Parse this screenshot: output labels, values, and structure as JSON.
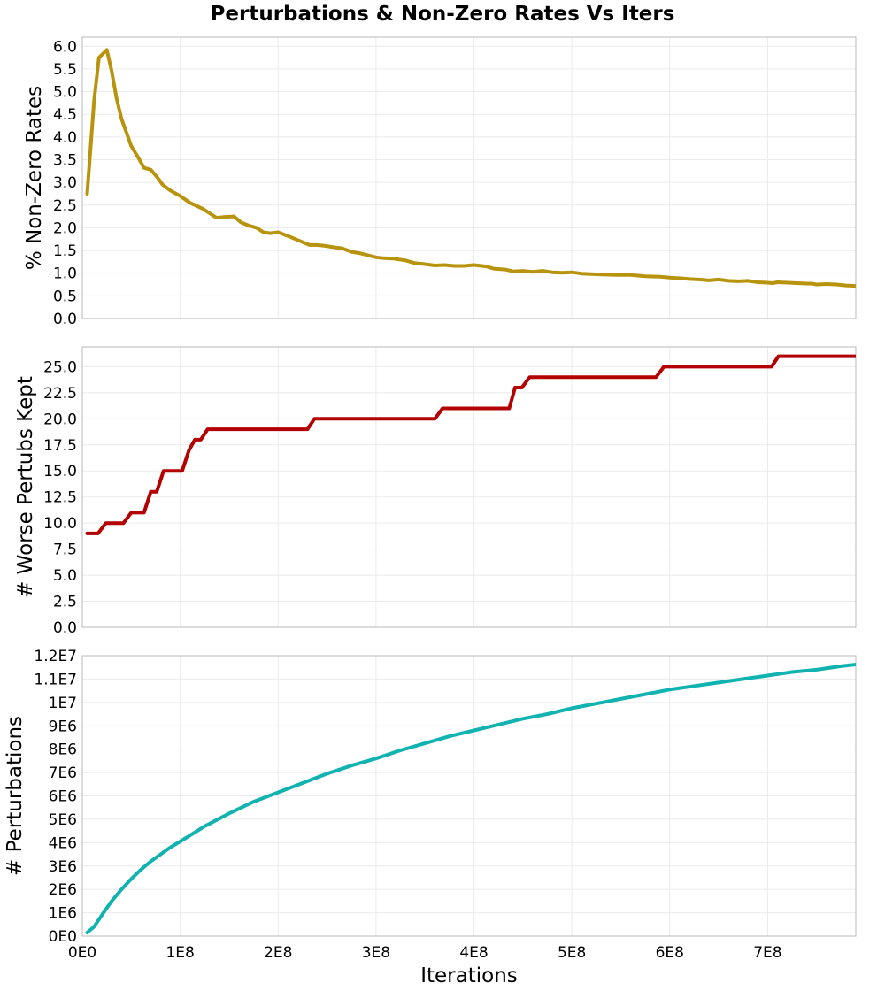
{
  "figure": {
    "title": "Perturbations & Non-Zero Rates Vs Iters",
    "xlabel": "Iterations"
  },
  "chart_data": [
    {
      "type": "line",
      "ylabel": "% Non-Zero Rates",
      "xlim": [
        0,
        790000000
      ],
      "ylim": [
        0,
        6.2
      ],
      "yticks": [
        0,
        0.5,
        1,
        1.5,
        2,
        2.5,
        3,
        3.5,
        4,
        4.5,
        5,
        5.5,
        6
      ],
      "ytick_labels": [
        "0.0",
        "0.5",
        "1.0",
        "1.5",
        "2.0",
        "2.5",
        "3.0",
        "3.5",
        "4.0",
        "4.5",
        "5.0",
        "5.5",
        "6.0"
      ],
      "xticks": [
        0,
        100000000,
        200000000,
        300000000,
        400000000,
        500000000,
        600000000,
        700000000
      ],
      "xtick_labels": [],
      "grid": true,
      "color": "#b8930d",
      "series": [
        {
          "x": [
            5000000,
            12000000,
            17000000,
            25000000,
            30000000,
            35000000,
            40000000,
            50000000,
            57000000,
            63000000,
            70000000,
            77000000,
            82000000,
            90000000,
            100000000,
            110000000,
            123000000,
            130000000,
            137000000,
            146000000,
            155000000,
            162000000,
            170000000,
            178000000,
            185000000,
            192000000,
            200000000,
            210000000,
            220000000,
            232000000,
            240000000,
            248000000,
            257000000,
            265000000,
            275000000,
            283000000,
            300000000,
            308000000,
            318000000,
            330000000,
            340000000,
            350000000,
            360000000,
            370000000,
            380000000,
            390000000,
            400000000,
            412000000,
            420000000,
            432000000,
            440000000,
            450000000,
            460000000,
            470000000,
            480000000,
            490000000,
            500000000,
            510000000,
            520000000,
            530000000,
            545000000,
            560000000,
            575000000,
            590000000,
            600000000,
            610000000,
            620000000,
            630000000,
            640000000,
            650000000,
            660000000,
            670000000,
            680000000,
            690000000,
            700000000,
            705000000,
            710000000,
            720000000,
            730000000,
            740000000,
            745000000,
            750000000,
            760000000,
            770000000,
            780000000,
            790000000
          ],
          "values": [
            2.75,
            4.8,
            5.75,
            5.92,
            5.45,
            4.85,
            4.4,
            3.8,
            3.55,
            3.32,
            3.28,
            3.1,
            2.95,
            2.82,
            2.7,
            2.55,
            2.42,
            2.32,
            2.22,
            2.24,
            2.25,
            2.12,
            2.05,
            2.0,
            1.9,
            1.88,
            1.9,
            1.82,
            1.73,
            1.62,
            1.62,
            1.6,
            1.57,
            1.55,
            1.47,
            1.44,
            1.35,
            1.33,
            1.32,
            1.28,
            1.22,
            1.2,
            1.17,
            1.18,
            1.16,
            1.16,
            1.18,
            1.15,
            1.1,
            1.08,
            1.04,
            1.05,
            1.03,
            1.05,
            1.02,
            1.01,
            1.02,
            0.99,
            0.98,
            0.97,
            0.96,
            0.96,
            0.93,
            0.92,
            0.9,
            0.89,
            0.87,
            0.86,
            0.84,
            0.86,
            0.83,
            0.82,
            0.83,
            0.8,
            0.79,
            0.78,
            0.8,
            0.79,
            0.78,
            0.77,
            0.77,
            0.75,
            0.76,
            0.75,
            0.73,
            0.72
          ]
        }
      ]
    },
    {
      "type": "line",
      "ylabel": "# Worse Pertubs Kept",
      "xlim": [
        0,
        790000000
      ],
      "ylim": [
        0,
        26.9
      ],
      "yticks": [
        0,
        2.5,
        5,
        7.5,
        10,
        12.5,
        15,
        17.5,
        20,
        22.5,
        25
      ],
      "ytick_labels": [
        "0.0",
        "2.5",
        "5.0",
        "7.5",
        "10.0",
        "12.5",
        "15.0",
        "17.5",
        "20.0",
        "22.5",
        "25.0"
      ],
      "xticks": [
        0,
        100000000,
        200000000,
        300000000,
        400000000,
        500000000,
        600000000,
        700000000
      ],
      "xtick_labels": [],
      "grid": true,
      "color": "#b30000",
      "series": [
        {
          "x": [
            5000000,
            16000000,
            24000000,
            42000000,
            50000000,
            63000000,
            70000000,
            76000000,
            83000000,
            102000000,
            109000000,
            115000000,
            121000000,
            128000000,
            230000000,
            237000000,
            360000000,
            368000000,
            436000000,
            442000000,
            449000000,
            457000000,
            586000000,
            594000000,
            704000000,
            711000000,
            790000000
          ],
          "values": [
            9,
            9,
            10,
            10,
            11,
            11,
            13,
            13,
            15,
            15,
            17,
            18,
            18,
            19,
            19,
            20,
            20,
            21,
            21,
            23,
            23,
            24,
            24,
            25,
            25,
            26,
            26
          ]
        }
      ]
    },
    {
      "type": "line",
      "ylabel": "# Perturbations",
      "xlim": [
        0,
        790000000
      ],
      "ylim": [
        0,
        12000000
      ],
      "yticks": [
        0,
        1000000,
        2000000,
        3000000,
        4000000,
        5000000,
        6000000,
        7000000,
        8000000,
        9000000,
        10000000,
        11000000,
        12000000
      ],
      "ytick_labels": [
        "0E0",
        "1E6",
        "2E6",
        "3E6",
        "4E6",
        "5E6",
        "6E6",
        "7E6",
        "8E6",
        "9E6",
        "1E7",
        "1.1E7",
        "1.2E7"
      ],
      "xticks": [
        0,
        100000000,
        200000000,
        300000000,
        400000000,
        500000000,
        600000000,
        700000000
      ],
      "xtick_labels": [
        "0E0",
        "1E8",
        "2E8",
        "3E8",
        "4E8",
        "5E8",
        "6E8",
        "7E8"
      ],
      "grid": true,
      "color": "#11b3b0",
      "series": [
        {
          "x": [
            5000000,
            12000000,
            20000000,
            30000000,
            40000000,
            50000000,
            60000000,
            70000000,
            80000000,
            90000000,
            100000000,
            125000000,
            150000000,
            175000000,
            200000000,
            225000000,
            250000000,
            275000000,
            300000000,
            325000000,
            350000000,
            375000000,
            400000000,
            425000000,
            450000000,
            475000000,
            500000000,
            525000000,
            550000000,
            575000000,
            600000000,
            625000000,
            650000000,
            675000000,
            700000000,
            725000000,
            750000000,
            775000000,
            790000000
          ],
          "values": [
            150000,
            400000,
            900000,
            1500000,
            2000000,
            2450000,
            2850000,
            3200000,
            3500000,
            3800000,
            4050000,
            4700000,
            5250000,
            5750000,
            6150000,
            6550000,
            6950000,
            7300000,
            7600000,
            7950000,
            8250000,
            8550000,
            8800000,
            9050000,
            9300000,
            9500000,
            9750000,
            9950000,
            10150000,
            10350000,
            10550000,
            10700000,
            10850000,
            11000000,
            11150000,
            11300000,
            11400000,
            11550000,
            11620000
          ]
        }
      ]
    }
  ]
}
